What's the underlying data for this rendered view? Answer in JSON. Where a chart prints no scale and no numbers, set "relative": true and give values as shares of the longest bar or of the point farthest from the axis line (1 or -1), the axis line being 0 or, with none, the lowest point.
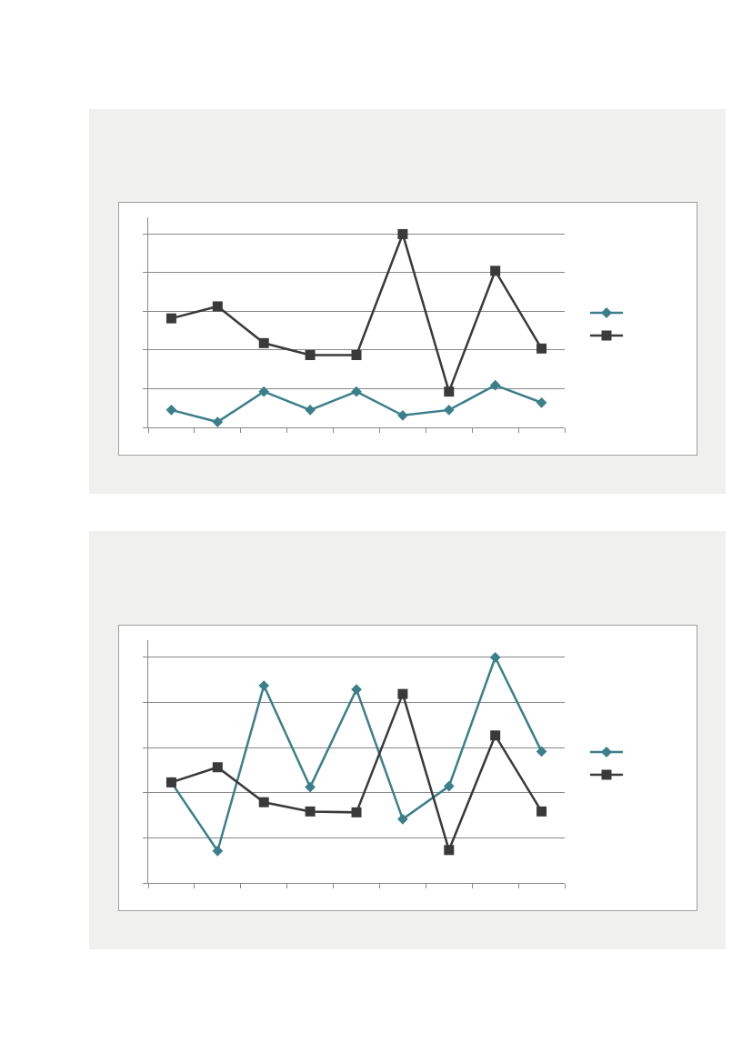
{
  "chart_data": [
    {
      "type": "line",
      "relative": true,
      "categories": [
        null,
        null,
        null,
        null,
        null,
        null,
        null,
        null,
        null
      ],
      "grid": "y",
      "series": [
        {
          "color": "#3b7f8a",
          "marker": "diamond",
          "values": [
            0.09,
            0.028,
            0.185,
            0.09,
            0.185,
            0.062,
            0.09,
            0.218,
            0.128
          ]
        },
        {
          "color": "#3a3a3a",
          "marker": "square",
          "values": [
            0.564,
            0.626,
            0.436,
            0.374,
            0.374,
            1,
            0.185,
            0.81,
            0.408
          ]
        }
      ]
    },
    {
      "type": "line",
      "relative": true,
      "categories": [
        null,
        null,
        null,
        null,
        null,
        null,
        null,
        null,
        null
      ],
      "grid": "y",
      "series": [
        {
          "color": "#3b7f8a",
          "marker": "diamond",
          "values": [
            0.446,
            0.142,
            0.875,
            0.425,
            0.858,
            0.283,
            0.429,
            1,
            0.583
          ]
        },
        {
          "color": "#3a3a3a",
          "marker": "square",
          "values": [
            0.446,
            0.513,
            0.358,
            0.317,
            0.313,
            0.838,
            0.146,
            0.654,
            0.317
          ]
        }
      ]
    }
  ]
}
